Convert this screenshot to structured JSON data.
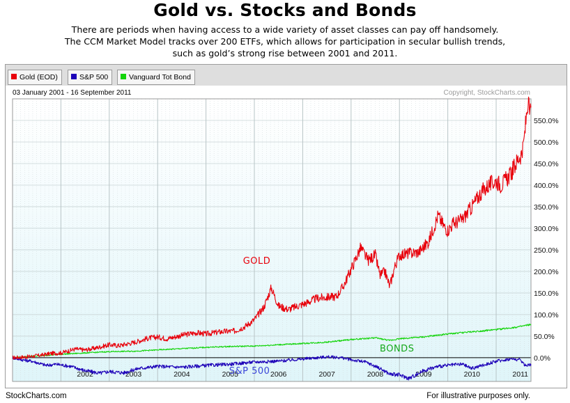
{
  "header": {
    "title": "Gold vs. Stocks and Bonds",
    "subtitle_lines": [
      "There are periods when having access to a wide variety of asset classes can pay off handsomely.",
      "The CCM Market Model tracks over 200 ETFs, which allows for participation in secular bullish trends,",
      "such as gold’s strong rise between 2001 and 2011."
    ]
  },
  "legend": [
    {
      "label": "Gold (EOD)",
      "color": "#e8000b"
    },
    {
      "label": "S&P 500",
      "color": "#1c00b8"
    },
    {
      "label": "Vanguard Tot Bond",
      "color": "#13d40a"
    }
  ],
  "footer": {
    "left": "StockCharts.com",
    "right": "For illustrative purposes only."
  },
  "chart_data": {
    "type": "line",
    "date_range_label": "03 January 2001 - 16 September 2011",
    "copyright": "Copyright, StockCharts.com",
    "x_range": [
      2001.0,
      2011.72
    ],
    "ylim": [
      -55,
      600
    ],
    "x_ticks": [
      "2002",
      "2003",
      "2004",
      "2005",
      "2006",
      "2007",
      "2008",
      "2009",
      "2010",
      "2011"
    ],
    "x_tick_values": [
      2002,
      2003,
      2004,
      2005,
      2006,
      2007,
      2008,
      2009,
      2010,
      2011
    ],
    "y_ticks": [
      0,
      50,
      100,
      150,
      200,
      250,
      300,
      350,
      400,
      450,
      500,
      550
    ],
    "y_tick_labels": [
      "0.0%",
      "50.0%",
      "100.0%",
      "150.0%",
      "200.0%",
      "250.0%",
      "300.0%",
      "350.0%",
      "400.0%",
      "450.0%",
      "500.0%",
      "550.0%"
    ],
    "annotations": [
      {
        "text": "GOLD",
        "color": "#e8000b",
        "x": 2006.05,
        "y": 218
      },
      {
        "text": "BONDS",
        "color": "#14a81a",
        "x": 2008.95,
        "y": 14
      },
      {
        "text": "S&P 500",
        "color": "#3a44d8",
        "x": 2005.9,
        "y": -37
      }
    ],
    "series": [
      {
        "name": "Gold (EOD)",
        "color": "#e8000b",
        "x": [
          2001.0,
          2001.3,
          2001.6,
          2001.8,
          2002.0,
          2002.3,
          2002.5,
          2002.7,
          2003.0,
          2003.2,
          2003.5,
          2003.8,
          2004.0,
          2004.2,
          2004.5,
          2004.8,
          2005.0,
          2005.3,
          2005.6,
          2005.8,
          2006.0,
          2006.2,
          2006.35,
          2006.5,
          2006.7,
          2006.9,
          2007.1,
          2007.3,
          2007.5,
          2007.7,
          2007.85,
          2008.0,
          2008.2,
          2008.35,
          2008.5,
          2008.6,
          2008.7,
          2008.8,
          2008.9,
          2009.0,
          2009.2,
          2009.4,
          2009.6,
          2009.8,
          2009.92,
          2010.0,
          2010.1,
          2010.3,
          2010.5,
          2010.7,
          2010.85,
          2011.0,
          2011.1,
          2011.3,
          2011.45,
          2011.55,
          2011.6,
          2011.65,
          2011.7,
          2011.72
        ],
        "values": [
          0,
          2,
          6,
          10,
          11,
          20,
          18,
          22,
          30,
          28,
          35,
          45,
          48,
          44,
          52,
          58,
          55,
          60,
          62,
          72,
          88,
          118,
          162,
          120,
          112,
          120,
          128,
          138,
          140,
          142,
          168,
          205,
          255,
          225,
          238,
          190,
          200,
          165,
          210,
          238,
          242,
          245,
          268,
          330,
          305,
          295,
          310,
          320,
          350,
          385,
          400,
          410,
          400,
          425,
          460,
          478,
          530,
          590,
          565,
          580
        ]
      },
      {
        "name": "S&P 500",
        "color": "#1c00b8",
        "x": [
          2001.0,
          2001.2,
          2001.4,
          2001.7,
          2001.9,
          2002.2,
          2002.5,
          2002.8,
          2003.0,
          2003.3,
          2003.6,
          2004.0,
          2004.5,
          2005.0,
          2005.5,
          2006.0,
          2006.5,
          2007.0,
          2007.5,
          2007.8,
          2008.0,
          2008.3,
          2008.6,
          2008.8,
          2009.0,
          2009.2,
          2009.5,
          2009.8,
          2010.0,
          2010.3,
          2010.5,
          2010.8,
          2011.0,
          2011.3,
          2011.5,
          2011.6,
          2011.72
        ],
        "values": [
          0,
          -5,
          -8,
          -18,
          -15,
          -20,
          -30,
          -36,
          -32,
          -35,
          -25,
          -20,
          -22,
          -18,
          -15,
          -10,
          -8,
          -3,
          2,
          0,
          -5,
          -10,
          -25,
          -38,
          -40,
          -48,
          -30,
          -20,
          -18,
          -15,
          -25,
          -15,
          -8,
          -3,
          -5,
          -18,
          -15
        ]
      },
      {
        "name": "Vanguard Tot Bond",
        "color": "#13d40a",
        "x": [
          2001.0,
          2001.5,
          2002.0,
          2002.5,
          2003.0,
          2003.5,
          2004.0,
          2004.5,
          2005.0,
          2005.5,
          2006.0,
          2006.5,
          2007.0,
          2007.5,
          2008.0,
          2008.5,
          2008.8,
          2009.0,
          2009.5,
          2010.0,
          2010.5,
          2011.0,
          2011.5,
          2011.72
        ],
        "values": [
          0,
          4,
          8,
          11,
          14,
          15,
          18,
          21,
          24,
          26,
          27,
          30,
          33,
          36,
          42,
          46,
          40,
          44,
          48,
          55,
          60,
          65,
          72,
          77
        ]
      }
    ]
  }
}
